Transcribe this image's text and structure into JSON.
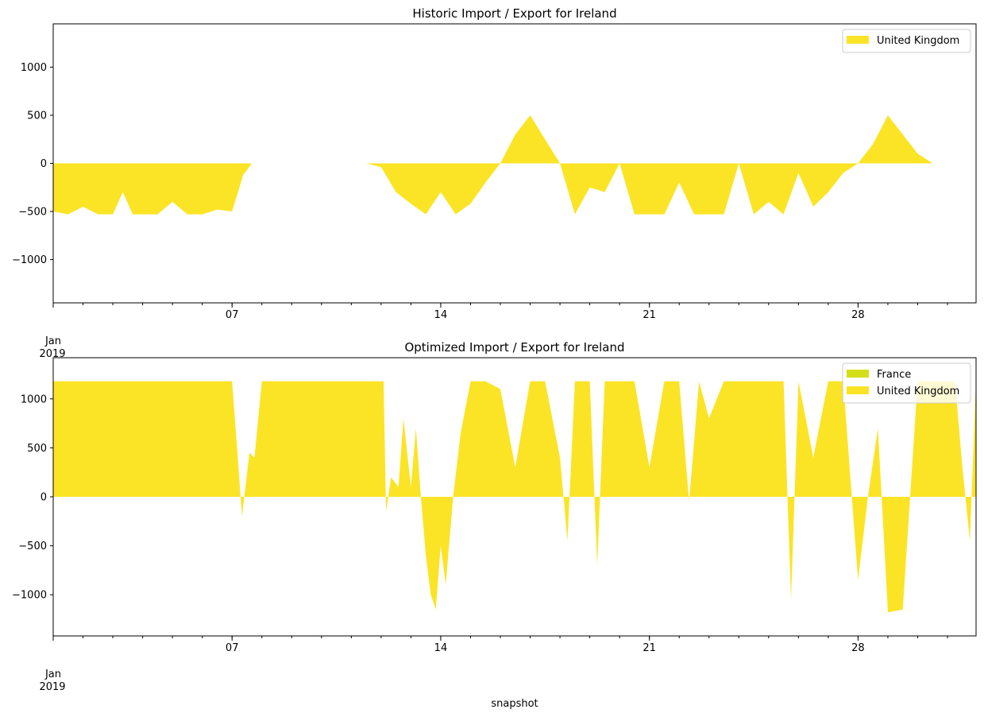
{
  "chart_data": [
    {
      "type": "area",
      "title": "Historic Import / Export for Ireland",
      "xlabel": "",
      "ylabel": "",
      "x_range": [
        "2019-01-01",
        "2019-01-31T23:00"
      ],
      "xticks": [
        {
          "date": "2019-01-01",
          "label": "Jan",
          "sublabel": "2019"
        },
        {
          "date": "2019-01-07",
          "label": "07"
        },
        {
          "date": "2019-01-14",
          "label": "14"
        },
        {
          "date": "2019-01-21",
          "label": "21"
        },
        {
          "date": "2019-01-28",
          "label": "28"
        }
      ],
      "yticks": [
        -1000,
        -500,
        0,
        500,
        1000
      ],
      "ylim": [
        -1450,
        1450
      ],
      "grid": false,
      "legend_position": "top-right",
      "series": [
        {
          "name": "United Kingdom",
          "color": "#fbe425",
          "points": [
            [
              "2019-01-01",
              -500
            ],
            [
              "2019-01-01T12:00",
              -530
            ],
            [
              "2019-01-02",
              -450
            ],
            [
              "2019-01-02T12:00",
              -530
            ],
            [
              "2019-01-03",
              -530
            ],
            [
              "2019-01-03T08:00",
              -300
            ],
            [
              "2019-01-03T16:00",
              -530
            ],
            [
              "2019-01-04",
              -530
            ],
            [
              "2019-01-04T12:00",
              -530
            ],
            [
              "2019-01-05",
              -400
            ],
            [
              "2019-01-05T12:00",
              -530
            ],
            [
              "2019-01-06",
              -530
            ],
            [
              "2019-01-06T12:00",
              -480
            ],
            [
              "2019-01-07",
              -500
            ],
            [
              "2019-01-07T09:00",
              -120
            ],
            [
              "2019-01-07T16:00",
              0
            ],
            [
              "2019-01-07T23:00",
              0
            ],
            [
              "2019-01-08",
              0
            ],
            [
              "2019-01-09",
              0
            ],
            [
              "2019-01-10",
              0
            ],
            [
              "2019-01-11",
              0
            ],
            [
              "2019-01-11T12:00",
              0
            ],
            [
              "2019-01-12",
              -40
            ],
            [
              "2019-01-12T12:00",
              -300
            ],
            [
              "2019-01-13",
              -420
            ],
            [
              "2019-01-13T12:00",
              -530
            ],
            [
              "2019-01-14",
              -300
            ],
            [
              "2019-01-14T12:00",
              -530
            ],
            [
              "2019-01-15",
              -420
            ],
            [
              "2019-01-15T12:00",
              -200
            ],
            [
              "2019-01-16",
              0
            ],
            [
              "2019-01-16T12:00",
              300
            ],
            [
              "2019-01-17",
              500
            ],
            [
              "2019-01-17T12:00",
              250
            ],
            [
              "2019-01-18",
              0
            ],
            [
              "2019-01-18T12:00",
              -530
            ],
            [
              "2019-01-19",
              -250
            ],
            [
              "2019-01-19T12:00",
              -300
            ],
            [
              "2019-01-20",
              0
            ],
            [
              "2019-01-20T12:00",
              -530
            ],
            [
              "2019-01-21",
              -530
            ],
            [
              "2019-01-21T12:00",
              -530
            ],
            [
              "2019-01-22",
              -200
            ],
            [
              "2019-01-22T12:00",
              -530
            ],
            [
              "2019-01-23",
              -530
            ],
            [
              "2019-01-23T12:00",
              -530
            ],
            [
              "2019-01-24",
              0
            ],
            [
              "2019-01-24T12:00",
              -530
            ],
            [
              "2019-01-25",
              -400
            ],
            [
              "2019-01-25T12:00",
              -530
            ],
            [
              "2019-01-26",
              -100
            ],
            [
              "2019-01-26T12:00",
              -450
            ],
            [
              "2019-01-27",
              -300
            ],
            [
              "2019-01-27T12:00",
              -100
            ],
            [
              "2019-01-28",
              0
            ],
            [
              "2019-01-28T12:00",
              200
            ],
            [
              "2019-01-29",
              500
            ],
            [
              "2019-01-29T12:00",
              300
            ],
            [
              "2019-01-30",
              100
            ],
            [
              "2019-01-30T12:00",
              0
            ],
            [
              "2019-01-31",
              0
            ],
            [
              "2019-01-31T23:00",
              0
            ]
          ]
        }
      ]
    },
    {
      "type": "area",
      "title": "Optimized Import / Export for Ireland",
      "xlabel": "snapshot",
      "ylabel": "",
      "x_range": [
        "2019-01-01",
        "2019-01-31T23:00"
      ],
      "xticks": [
        {
          "date": "2019-01-01",
          "label": "Jan",
          "sublabel": "2019"
        },
        {
          "date": "2019-01-07",
          "label": "07"
        },
        {
          "date": "2019-01-14",
          "label": "14"
        },
        {
          "date": "2019-01-21",
          "label": "21"
        },
        {
          "date": "2019-01-28",
          "label": "28"
        }
      ],
      "yticks": [
        -1000,
        -500,
        0,
        500,
        1000
      ],
      "ylim": [
        -1420,
        1420
      ],
      "grid": false,
      "legend_position": "top-right",
      "series": [
        {
          "name": "France",
          "color": "#d4df1a",
          "points": [
            [
              "2019-01-01",
              0
            ],
            [
              "2019-01-31T23:00",
              0
            ]
          ]
        },
        {
          "name": "United Kingdom",
          "color": "#fbe425",
          "points": [
            [
              "2019-01-01",
              1180
            ],
            [
              "2019-01-07",
              1180
            ],
            [
              "2019-01-07T04:00",
              500
            ],
            [
              "2019-01-07T08:00",
              -200
            ],
            [
              "2019-01-07T14:00",
              450
            ],
            [
              "2019-01-07T18:00",
              400
            ],
            [
              "2019-01-08",
              1180
            ],
            [
              "2019-01-12",
              1180
            ],
            [
              "2019-01-12T02:00",
              1180
            ],
            [
              "2019-01-12T04:00",
              -150
            ],
            [
              "2019-01-12T08:00",
              200
            ],
            [
              "2019-01-12T14:00",
              100
            ],
            [
              "2019-01-12T18:00",
              800
            ],
            [
              "2019-01-13",
              100
            ],
            [
              "2019-01-13T04:00",
              700
            ],
            [
              "2019-01-13T08:00",
              0
            ],
            [
              "2019-01-13T12:00",
              -600
            ],
            [
              "2019-01-13T16:00",
              -1000
            ],
            [
              "2019-01-13T20:00",
              -1150
            ],
            [
              "2019-01-14",
              -500
            ],
            [
              "2019-01-14T04:00",
              -900
            ],
            [
              "2019-01-14T10:00",
              0
            ],
            [
              "2019-01-14T16:00",
              650
            ],
            [
              "2019-01-15",
              1180
            ],
            [
              "2019-01-15T12:00",
              1180
            ],
            [
              "2019-01-16",
              1100
            ],
            [
              "2019-01-16T12:00",
              300
            ],
            [
              "2019-01-17",
              1180
            ],
            [
              "2019-01-17T12:00",
              1180
            ],
            [
              "2019-01-18",
              400
            ],
            [
              "2019-01-18T06:00",
              -450
            ],
            [
              "2019-01-18T12:00",
              1180
            ],
            [
              "2019-01-19",
              1180
            ],
            [
              "2019-01-19T06:00",
              -700
            ],
            [
              "2019-01-19T12:00",
              1180
            ],
            [
              "2019-01-20",
              1180
            ],
            [
              "2019-01-20T12:00",
              1180
            ],
            [
              "2019-01-21",
              300
            ],
            [
              "2019-01-21T12:00",
              1180
            ],
            [
              "2019-01-22",
              1180
            ],
            [
              "2019-01-22T08:00",
              -50
            ],
            [
              "2019-01-22T16:00",
              1180
            ],
            [
              "2019-01-23",
              800
            ],
            [
              "2019-01-23T12:00",
              1180
            ],
            [
              "2019-01-24",
              1180
            ],
            [
              "2019-01-24T12:00",
              1180
            ],
            [
              "2019-01-25",
              1180
            ],
            [
              "2019-01-25T12:00",
              1180
            ],
            [
              "2019-01-25T18:00",
              -1050
            ],
            [
              "2019-01-26",
              1180
            ],
            [
              "2019-01-26T12:00",
              400
            ],
            [
              "2019-01-27",
              1180
            ],
            [
              "2019-01-27T12:00",
              1180
            ],
            [
              "2019-01-28",
              -850
            ],
            [
              "2019-01-28T08:00",
              0
            ],
            [
              "2019-01-28T16:00",
              700
            ],
            [
              "2019-01-29",
              -1180
            ],
            [
              "2019-01-29T12:00",
              -1150
            ],
            [
              "2019-01-30",
              1180
            ],
            [
              "2019-01-30T12:00",
              1180
            ],
            [
              "2019-01-31",
              1180
            ],
            [
              "2019-01-31T06:00",
              1180
            ],
            [
              "2019-01-31T12:00",
              300
            ],
            [
              "2019-01-31T18:00",
              -450
            ],
            [
              "2019-01-31T23:00",
              1180
            ]
          ]
        }
      ]
    }
  ]
}
